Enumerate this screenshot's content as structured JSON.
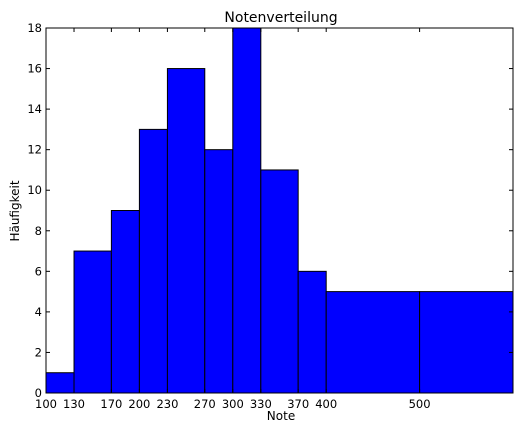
{
  "chart_data": {
    "type": "bar",
    "title": "Notenverteilung",
    "xlabel": "Note",
    "ylabel": "Häufigkeit",
    "bins": [
      {
        "start": 100,
        "end": 130,
        "value": 1
      },
      {
        "start": 130,
        "end": 170,
        "value": 7
      },
      {
        "start": 170,
        "end": 200,
        "value": 9
      },
      {
        "start": 200,
        "end": 230,
        "value": 13
      },
      {
        "start": 230,
        "end": 270,
        "value": 16
      },
      {
        "start": 270,
        "end": 300,
        "value": 12
      },
      {
        "start": 300,
        "end": 330,
        "value": 18
      },
      {
        "start": 330,
        "end": 370,
        "value": 11
      },
      {
        "start": 370,
        "end": 400,
        "value": 6
      },
      {
        "start": 400,
        "end": 500,
        "value": 5
      },
      {
        "start": 500,
        "end": 600,
        "value": 5
      }
    ],
    "xticks": [
      100,
      130,
      170,
      200,
      230,
      270,
      300,
      330,
      370,
      400,
      500
    ],
    "yticks": [
      0,
      2,
      4,
      6,
      8,
      10,
      12,
      14,
      16,
      18
    ],
    "xlim": [
      100,
      600
    ],
    "ylim": [
      0,
      18
    ],
    "grid": false,
    "bar_color": "#0000ff",
    "edge_color": "#000000"
  }
}
